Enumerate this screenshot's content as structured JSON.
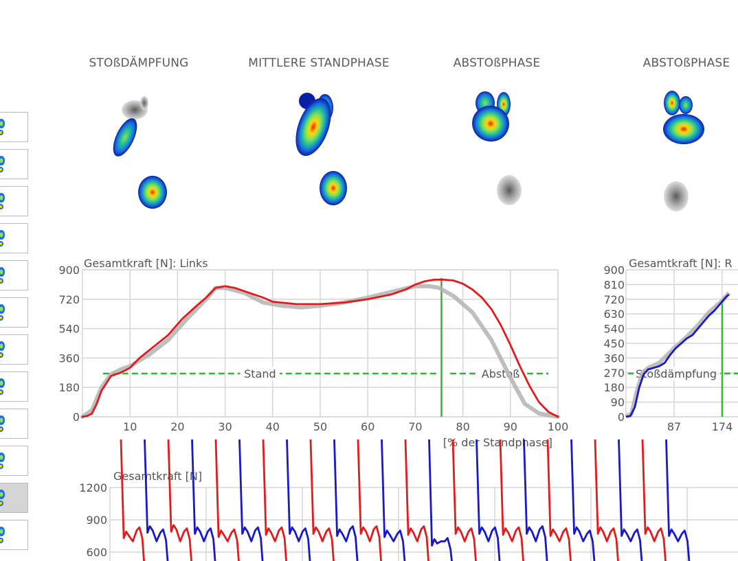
{
  "phase_titles": [
    "STOßDÄMPFUNG",
    "MITTLERE STANDPHASE",
    "ABSTOßPHASE",
    "ABSTOßPHASE"
  ],
  "step_list": {
    "count": 12,
    "selected_index": 10
  },
  "colors": {
    "left": "#e31a1c",
    "right": "#1818c8",
    "average": "#b3b3b3",
    "phase_marker": "#2fb52f",
    "grid": "#d6d6d6",
    "text": "#555555"
  },
  "chart_data": [
    {
      "type": "line",
      "title": "Gesamtkraft [N]: Links",
      "xlabel": "[% der Standphase]",
      "ylabel": "",
      "xlim": [
        0,
        100
      ],
      "ylim": [
        0,
        900
      ],
      "x_ticks": [
        10,
        20,
        30,
        40,
        50,
        60,
        70,
        80,
        90,
        100
      ],
      "y_ticks": [
        0,
        180,
        360,
        540,
        720,
        900
      ],
      "grid": true,
      "series": [
        {
          "name": "",
          "color": "#b3b3b3",
          "x": [
            0,
            2,
            4,
            6,
            8,
            10,
            14,
            18,
            22,
            26,
            28,
            30,
            34,
            38,
            42,
            46,
            50,
            55,
            60,
            65,
            70,
            73,
            75,
            78,
            82,
            86,
            90,
            93,
            96,
            100
          ],
          "y": [
            0,
            40,
            180,
            260,
            290,
            310,
            380,
            470,
            600,
            720,
            790,
            790,
            760,
            700,
            680,
            670,
            680,
            700,
            730,
            765,
            800,
            800,
            790,
            740,
            640,
            470,
            240,
            80,
            20,
            0
          ]
        },
        {
          "name": "",
          "color": "#e31a1c",
          "x": [
            0,
            1,
            2,
            3,
            4,
            6,
            8,
            10,
            12,
            15,
            18,
            21,
            24,
            26,
            28,
            30,
            32,
            34,
            36,
            38,
            40,
            45,
            50,
            55,
            60,
            65,
            68,
            70,
            72,
            74,
            76,
            78,
            80,
            82,
            84,
            86,
            88,
            90,
            92,
            94,
            96,
            98,
            100
          ],
          "y": [
            0,
            5,
            20,
            80,
            160,
            250,
            270,
            300,
            360,
            430,
            500,
            600,
            680,
            730,
            790,
            800,
            790,
            770,
            750,
            730,
            705,
            690,
            690,
            700,
            720,
            750,
            780,
            810,
            830,
            840,
            840,
            835,
            815,
            780,
            730,
            660,
            560,
            440,
            310,
            190,
            90,
            30,
            0
          ]
        }
      ],
      "phases": [
        {
          "label": "Stand",
          "x": [
            2,
            75
          ],
          "y": 265
        },
        {
          "label": "Abstoß",
          "x": [
            75,
            98
          ],
          "y": 265
        }
      ],
      "marker_x": 75.5
    },
    {
      "type": "line",
      "title": "Gesamtkraft [N]: R",
      "xlabel": "",
      "ylabel": "",
      "x_ticks": [
        87,
        174
      ],
      "y_ticks": [
        0,
        90,
        180,
        270,
        360,
        450,
        540,
        630,
        720,
        810,
        900
      ],
      "ylim": [
        0,
        900
      ],
      "grid": true,
      "series": [
        {
          "name": "",
          "color": "#b3b3b3",
          "x": [
            0,
            10,
            20,
            30,
            40,
            60,
            87,
            110,
            130,
            150,
            174,
            186
          ],
          "y": [
            0,
            20,
            160,
            270,
            300,
            330,
            420,
            490,
            560,
            640,
            710,
            760
          ]
        },
        {
          "name": "",
          "color": "#1818c8",
          "x": [
            0,
            8,
            16,
            24,
            32,
            40,
            50,
            60,
            70,
            80,
            90,
            100,
            110,
            120,
            130,
            140,
            150,
            160,
            170,
            180,
            186
          ],
          "y": [
            0,
            5,
            60,
            180,
            260,
            290,
            300,
            310,
            330,
            380,
            420,
            450,
            480,
            500,
            540,
            580,
            620,
            650,
            690,
            730,
            750
          ]
        }
      ],
      "phases": [
        {
          "label": "Stoßdämpfung",
          "x": [
            0,
            174
          ],
          "y": 265
        }
      ],
      "marker_x": 174
    },
    {
      "type": "line",
      "title": "Gesamtkraft [N]",
      "xlabel": "",
      "ylabel": "",
      "y_ticks": [
        600,
        900,
        1200
      ],
      "grid": true,
      "peak_pairs": [
        {
          "side": "left",
          "p1": 790,
          "p2": 830
        },
        {
          "side": "right",
          "p1": 840,
          "p2": 810
        },
        {
          "side": "left",
          "p1": 850,
          "p2": 820
        },
        {
          "side": "right",
          "p1": 830,
          "p2": 820
        },
        {
          "side": "left",
          "p1": 800,
          "p2": 810
        },
        {
          "side": "right",
          "p1": 830,
          "p2": 830
        },
        {
          "side": "left",
          "p1": 820,
          "p2": 830
        },
        {
          "side": "right",
          "p1": 830,
          "p2": 820
        },
        {
          "side": "left",
          "p1": 830,
          "p2": 820
        },
        {
          "side": "right",
          "p1": 810,
          "p2": 840
        },
        {
          "side": "left",
          "p1": 830,
          "p2": 840
        },
        {
          "side": "right",
          "p1": 800,
          "p2": 800
        },
        {
          "side": "left",
          "p1": 820,
          "p2": 840
        },
        {
          "side": "right",
          "p1": 720,
          "p2": 730
        },
        {
          "side": "left",
          "p1": 830,
          "p2": 820
        },
        {
          "side": "right",
          "p1": 830,
          "p2": 830
        },
        {
          "side": "left",
          "p1": 820,
          "p2": 830
        },
        {
          "side": "right",
          "p1": 830,
          "p2": 840
        },
        {
          "side": "left",
          "p1": 810,
          "p2": 820
        },
        {
          "side": "right",
          "p1": 830,
          "p2": 800
        },
        {
          "side": "left",
          "p1": 830,
          "p2": 820
        },
        {
          "side": "right",
          "p1": 810,
          "p2": 810
        },
        {
          "side": "left",
          "p1": 830,
          "p2": 820
        },
        {
          "side": "right",
          "p1": 810,
          "p2": 800
        }
      ]
    }
  ]
}
